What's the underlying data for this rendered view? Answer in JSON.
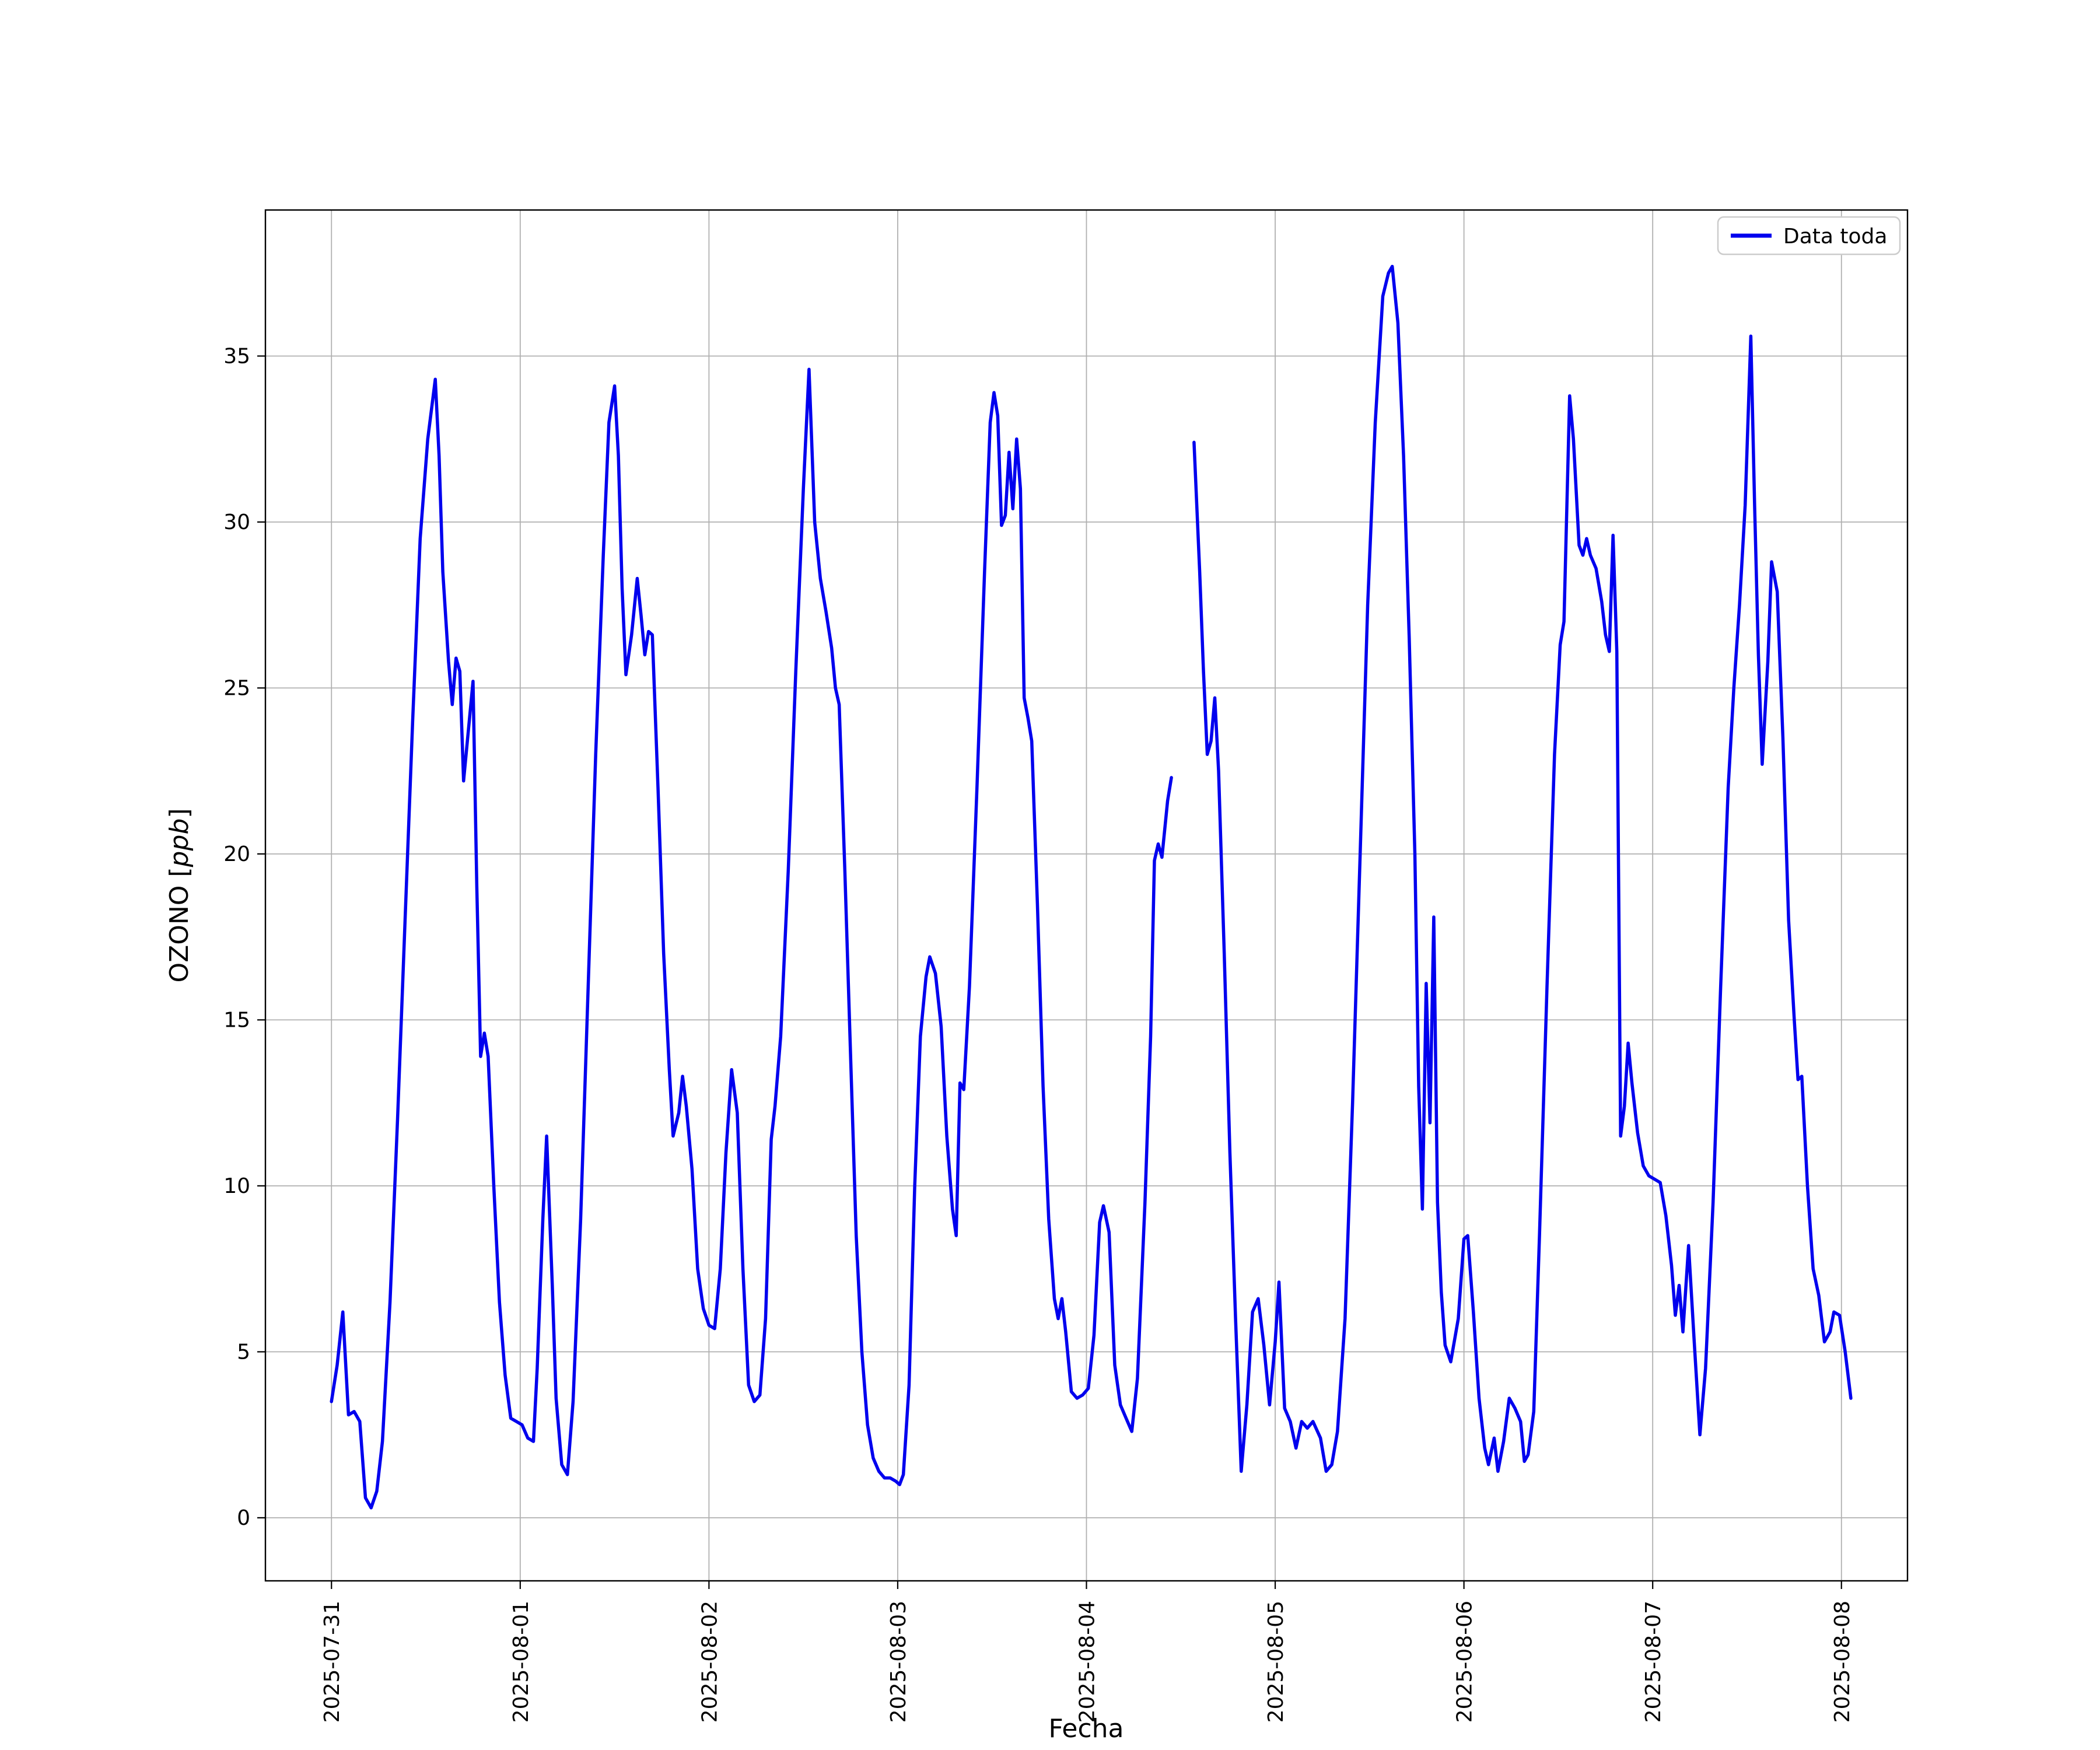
{
  "chart_data": {
    "type": "line",
    "title": "",
    "xlabel": "Fecha",
    "ylabel_prefix": "OZONO [",
    "ylabel_italic": "ppb",
    "ylabel_suffix": "]",
    "legend": {
      "label": "Data toda",
      "position": "upper right"
    },
    "line_color": "#0000ee",
    "grid_color": "#b0b0b0",
    "grid": true,
    "xlim": [
      -0.35,
      8.35
    ],
    "ylim": [
      -1.9,
      39.4
    ],
    "yticks": [
      0,
      5,
      10,
      15,
      20,
      25,
      30,
      35
    ],
    "xticks": [
      {
        "t": 0,
        "label": "2025-07-31"
      },
      {
        "t": 1,
        "label": "2025-08-01"
      },
      {
        "t": 2,
        "label": "2025-08-02"
      },
      {
        "t": 3,
        "label": "2025-08-03"
      },
      {
        "t": 4,
        "label": "2025-08-04"
      },
      {
        "t": 5,
        "label": "2025-08-05"
      },
      {
        "t": 6,
        "label": "2025-08-06"
      },
      {
        "t": 7,
        "label": "2025-08-07"
      },
      {
        "t": 8,
        "label": "2025-08-08"
      }
    ],
    "series_name": "Data toda",
    "points": [
      [
        0.0,
        3.5
      ],
      [
        0.03,
        4.6
      ],
      [
        0.06,
        6.2
      ],
      [
        0.09,
        3.1
      ],
      [
        0.12,
        3.2
      ],
      [
        0.15,
        2.9
      ],
      [
        0.18,
        0.6
      ],
      [
        0.21,
        0.3
      ],
      [
        0.24,
        0.8
      ],
      [
        0.27,
        2.3
      ],
      [
        0.31,
        6.5
      ],
      [
        0.35,
        12.0
      ],
      [
        0.39,
        18.0
      ],
      [
        0.43,
        24.0
      ],
      [
        0.47,
        29.5
      ],
      [
        0.51,
        32.5
      ],
      [
        0.55,
        34.3
      ],
      [
        0.57,
        32.0
      ],
      [
        0.59,
        28.5
      ],
      [
        0.62,
        25.8
      ],
      [
        0.64,
        24.5
      ],
      [
        0.66,
        25.9
      ],
      [
        0.68,
        25.5
      ],
      [
        0.7,
        22.2
      ],
      [
        0.72,
        23.4
      ],
      [
        0.75,
        25.2
      ],
      [
        0.77,
        19.0
      ],
      [
        0.79,
        13.9
      ],
      [
        0.81,
        14.6
      ],
      [
        0.83,
        13.9
      ],
      [
        0.86,
        10.0
      ],
      [
        0.89,
        6.5
      ],
      [
        0.92,
        4.3
      ],
      [
        0.95,
        3.0
      ],
      [
        0.98,
        2.9
      ],
      [
        1.01,
        2.8
      ],
      [
        1.04,
        2.4
      ],
      [
        1.07,
        2.3
      ],
      [
        1.09,
        4.5
      ],
      [
        1.12,
        9.0
      ],
      [
        1.14,
        11.5
      ],
      [
        1.17,
        7.0
      ],
      [
        1.19,
        3.6
      ],
      [
        1.22,
        1.6
      ],
      [
        1.25,
        1.3
      ],
      [
        1.28,
        3.5
      ],
      [
        1.32,
        9.0
      ],
      [
        1.36,
        16.0
      ],
      [
        1.4,
        23.0
      ],
      [
        1.44,
        29.0
      ],
      [
        1.47,
        33.0
      ],
      [
        1.5,
        34.1
      ],
      [
        1.52,
        32.0
      ],
      [
        1.54,
        28.0
      ],
      [
        1.56,
        25.4
      ],
      [
        1.59,
        26.6
      ],
      [
        1.62,
        28.3
      ],
      [
        1.64,
        27.2
      ],
      [
        1.66,
        26.0
      ],
      [
        1.68,
        26.7
      ],
      [
        1.7,
        26.6
      ],
      [
        1.73,
        22.0
      ],
      [
        1.76,
        17.0
      ],
      [
        1.79,
        13.5
      ],
      [
        1.81,
        11.5
      ],
      [
        1.84,
        12.2
      ],
      [
        1.86,
        13.3
      ],
      [
        1.88,
        12.4
      ],
      [
        1.91,
        10.5
      ],
      [
        1.94,
        7.5
      ],
      [
        1.97,
        6.3
      ],
      [
        2.0,
        5.8
      ],
      [
        2.03,
        5.7
      ],
      [
        2.06,
        7.5
      ],
      [
        2.09,
        11.0
      ],
      [
        2.12,
        13.5
      ],
      [
        2.15,
        12.2
      ],
      [
        2.18,
        7.5
      ],
      [
        2.21,
        4.0
      ],
      [
        2.24,
        3.5
      ],
      [
        2.27,
        3.7
      ],
      [
        2.3,
        6.0
      ],
      [
        2.33,
        11.4
      ],
      [
        2.35,
        12.4
      ],
      [
        2.38,
        14.5
      ],
      [
        2.42,
        19.5
      ],
      [
        2.46,
        25.5
      ],
      [
        2.5,
        31.0
      ],
      [
        2.53,
        34.6
      ],
      [
        2.56,
        30.0
      ],
      [
        2.59,
        28.3
      ],
      [
        2.62,
        27.3
      ],
      [
        2.65,
        26.2
      ],
      [
        2.67,
        25.0
      ],
      [
        2.69,
        24.5
      ],
      [
        2.72,
        19.5
      ],
      [
        2.75,
        14.0
      ],
      [
        2.78,
        8.5
      ],
      [
        2.81,
        5.0
      ],
      [
        2.84,
        2.8
      ],
      [
        2.87,
        1.8
      ],
      [
        2.9,
        1.4
      ],
      [
        2.93,
        1.2
      ],
      [
        2.96,
        1.2
      ],
      [
        2.99,
        1.1
      ],
      [
        3.01,
        1.0
      ],
      [
        3.03,
        1.3
      ],
      [
        3.06,
        4.0
      ],
      [
        3.09,
        10.0
      ],
      [
        3.12,
        14.5
      ],
      [
        3.15,
        16.3
      ],
      [
        3.17,
        16.9
      ],
      [
        3.2,
        16.4
      ],
      [
        3.23,
        14.8
      ],
      [
        3.26,
        11.5
      ],
      [
        3.29,
        9.3
      ],
      [
        3.31,
        8.5
      ],
      [
        3.33,
        13.1
      ],
      [
        3.35,
        12.9
      ],
      [
        3.38,
        16.0
      ],
      [
        3.42,
        22.0
      ],
      [
        3.46,
        28.5
      ],
      [
        3.49,
        33.0
      ],
      [
        3.51,
        33.9
      ],
      [
        3.53,
        33.2
      ],
      [
        3.55,
        29.9
      ],
      [
        3.57,
        30.2
      ],
      [
        3.59,
        32.1
      ],
      [
        3.61,
        30.4
      ],
      [
        3.63,
        32.5
      ],
      [
        3.65,
        31.0
      ],
      [
        3.67,
        24.7
      ],
      [
        3.69,
        24.1
      ],
      [
        3.71,
        23.4
      ],
      [
        3.74,
        18.5
      ],
      [
        3.77,
        13.0
      ],
      [
        3.8,
        9.0
      ],
      [
        3.83,
        6.6
      ],
      [
        3.85,
        6.0
      ],
      [
        3.87,
        6.6
      ],
      [
        3.89,
        5.6
      ],
      [
        3.92,
        3.8
      ],
      [
        3.95,
        3.6
      ],
      [
        3.98,
        3.7
      ],
      [
        4.01,
        3.9
      ],
      [
        4.04,
        5.5
      ],
      [
        4.07,
        8.9
      ],
      [
        4.09,
        9.4
      ],
      [
        4.12,
        8.6
      ],
      [
        4.15,
        4.6
      ],
      [
        4.18,
        3.4
      ],
      [
        4.21,
        3.0
      ],
      [
        4.24,
        2.6
      ],
      [
        4.27,
        4.2
      ],
      [
        4.31,
        9.5
      ],
      [
        4.34,
        14.5
      ],
      [
        4.36,
        19.8
      ],
      [
        4.38,
        20.3
      ],
      [
        4.4,
        19.9
      ],
      [
        4.43,
        21.6
      ],
      [
        4.45,
        22.3
      ],
      null,
      [
        4.57,
        32.4
      ],
      [
        4.6,
        28.5
      ],
      [
        4.62,
        25.5
      ],
      [
        4.64,
        23.0
      ],
      [
        4.66,
        23.4
      ],
      [
        4.68,
        24.7
      ],
      [
        4.7,
        22.5
      ],
      [
        4.73,
        17.0
      ],
      [
        4.76,
        11.0
      ],
      [
        4.79,
        6.0
      ],
      [
        4.82,
        1.4
      ],
      [
        4.85,
        3.4
      ],
      [
        4.88,
        6.2
      ],
      [
        4.91,
        6.6
      ],
      [
        4.94,
        5.2
      ],
      [
        4.97,
        3.4
      ],
      [
        5.0,
        5.3
      ],
      [
        5.02,
        7.1
      ],
      [
        5.05,
        3.3
      ],
      [
        5.08,
        2.9
      ],
      [
        5.11,
        2.1
      ],
      [
        5.14,
        2.9
      ],
      [
        5.17,
        2.7
      ],
      [
        5.2,
        2.9
      ],
      [
        5.24,
        2.4
      ],
      [
        5.27,
        1.4
      ],
      [
        5.3,
        1.6
      ],
      [
        5.33,
        2.6
      ],
      [
        5.37,
        6.0
      ],
      [
        5.41,
        12.5
      ],
      [
        5.45,
        20.0
      ],
      [
        5.49,
        27.5
      ],
      [
        5.53,
        33.0
      ],
      [
        5.57,
        36.8
      ],
      [
        5.6,
        37.5
      ],
      [
        5.62,
        37.7
      ],
      [
        5.65,
        36.0
      ],
      [
        5.68,
        32.0
      ],
      [
        5.71,
        26.5
      ],
      [
        5.74,
        20.0
      ],
      [
        5.76,
        13.0
      ],
      [
        5.78,
        9.3
      ],
      [
        5.8,
        16.1
      ],
      [
        5.82,
        11.9
      ],
      [
        5.84,
        18.1
      ],
      [
        5.86,
        9.5
      ],
      [
        5.88,
        6.8
      ],
      [
        5.9,
        5.2
      ],
      [
        5.93,
        4.7
      ],
      [
        5.97,
        6.0
      ],
      [
        6.0,
        8.4
      ],
      [
        6.02,
        8.5
      ],
      [
        6.05,
        6.2
      ],
      [
        6.08,
        3.6
      ],
      [
        6.11,
        2.1
      ],
      [
        6.13,
        1.6
      ],
      [
        6.16,
        2.4
      ],
      [
        6.18,
        1.4
      ],
      [
        6.21,
        2.3
      ],
      [
        6.24,
        3.6
      ],
      [
        6.27,
        3.3
      ],
      [
        6.3,
        2.9
      ],
      [
        6.32,
        1.7
      ],
      [
        6.34,
        1.9
      ],
      [
        6.37,
        3.2
      ],
      [
        6.4,
        8.5
      ],
      [
        6.44,
        16.0
      ],
      [
        6.48,
        23.0
      ],
      [
        6.51,
        26.3
      ],
      [
        6.53,
        27.0
      ],
      [
        6.56,
        33.8
      ],
      [
        6.58,
        32.5
      ],
      [
        6.61,
        29.3
      ],
      [
        6.63,
        29.0
      ],
      [
        6.65,
        29.5
      ],
      [
        6.67,
        29.0
      ],
      [
        6.7,
        28.6
      ],
      [
        6.73,
        27.6
      ],
      [
        6.75,
        26.6
      ],
      [
        6.77,
        26.1
      ],
      [
        6.79,
        29.6
      ],
      [
        6.81,
        26.1
      ],
      [
        6.83,
        11.5
      ],
      [
        6.85,
        12.4
      ],
      [
        6.87,
        14.3
      ],
      [
        6.89,
        13.1
      ],
      [
        6.92,
        11.6
      ],
      [
        6.95,
        10.6
      ],
      [
        6.98,
        10.3
      ],
      [
        7.01,
        10.2
      ],
      [
        7.04,
        10.1
      ],
      [
        7.07,
        9.1
      ],
      [
        7.1,
        7.6
      ],
      [
        7.12,
        6.1
      ],
      [
        7.14,
        7.0
      ],
      [
        7.16,
        5.6
      ],
      [
        7.19,
        8.2
      ],
      [
        7.22,
        5.3
      ],
      [
        7.25,
        2.5
      ],
      [
        7.28,
        4.5
      ],
      [
        7.32,
        9.5
      ],
      [
        7.36,
        16.0
      ],
      [
        7.4,
        22.0
      ],
      [
        7.43,
        25.0
      ],
      [
        7.46,
        27.5
      ],
      [
        7.49,
        30.5
      ],
      [
        7.52,
        35.6
      ],
      [
        7.54,
        30.5
      ],
      [
        7.56,
        26.0
      ],
      [
        7.58,
        22.7
      ],
      [
        7.61,
        25.8
      ],
      [
        7.63,
        28.8
      ],
      [
        7.66,
        27.9
      ],
      [
        7.69,
        23.5
      ],
      [
        7.72,
        18.0
      ],
      [
        7.75,
        15.0
      ],
      [
        7.77,
        13.2
      ],
      [
        7.79,
        13.3
      ],
      [
        7.82,
        10.0
      ],
      [
        7.85,
        7.5
      ],
      [
        7.88,
        6.7
      ],
      [
        7.91,
        5.3
      ],
      [
        7.94,
        5.6
      ],
      [
        7.96,
        6.2
      ],
      [
        7.99,
        6.1
      ],
      [
        8.02,
        5.0
      ],
      [
        8.05,
        3.6
      ]
    ]
  }
}
